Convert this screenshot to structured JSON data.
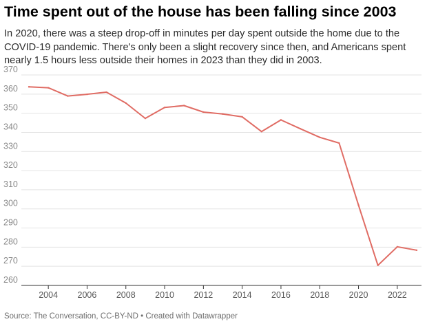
{
  "header": {
    "title": "Time spent out of the house has been falling since 2003",
    "subtitle": "In 2020, there was a steep drop-off in minutes per day spent outside the home due to the COVID-19 pandemic. There's only been a slight recovery since then, and Americans spent nearly 1.5 hours less outside their homes in 2023 than they did in 2003."
  },
  "footer": {
    "source": "Source: The Conversation, CC-BY-ND • Created with Datawrapper"
  },
  "chart_data": {
    "type": "line",
    "title": "Time spent out of the house has been falling since 2003",
    "xlabel": "",
    "ylabel": "",
    "xlim": [
      2003,
      2023
    ],
    "ylim": [
      260,
      370
    ],
    "x_ticks": [
      2004,
      2006,
      2008,
      2010,
      2012,
      2014,
      2016,
      2018,
      2020,
      2022
    ],
    "y_ticks": [
      260,
      270,
      280,
      290,
      300,
      310,
      320,
      330,
      340,
      350,
      360,
      370
    ],
    "grid": true,
    "line_color": "#e06c64",
    "x": [
      2003,
      2004,
      2005,
      2006,
      2007,
      2008,
      2009,
      2010,
      2011,
      2012,
      2013,
      2014,
      2015,
      2016,
      2017,
      2018,
      2019,
      2020,
      2021,
      2022,
      2023
    ],
    "series": [
      {
        "values": [
          363.8,
          363.3,
          359.0,
          359.9,
          361.0,
          355.3,
          347.3,
          353.0,
          354.0,
          350.6,
          349.6,
          348.1,
          340.4,
          346.5,
          341.9,
          337.4,
          334.4,
          302.0,
          270.5,
          280.2,
          278.4
        ]
      }
    ]
  }
}
